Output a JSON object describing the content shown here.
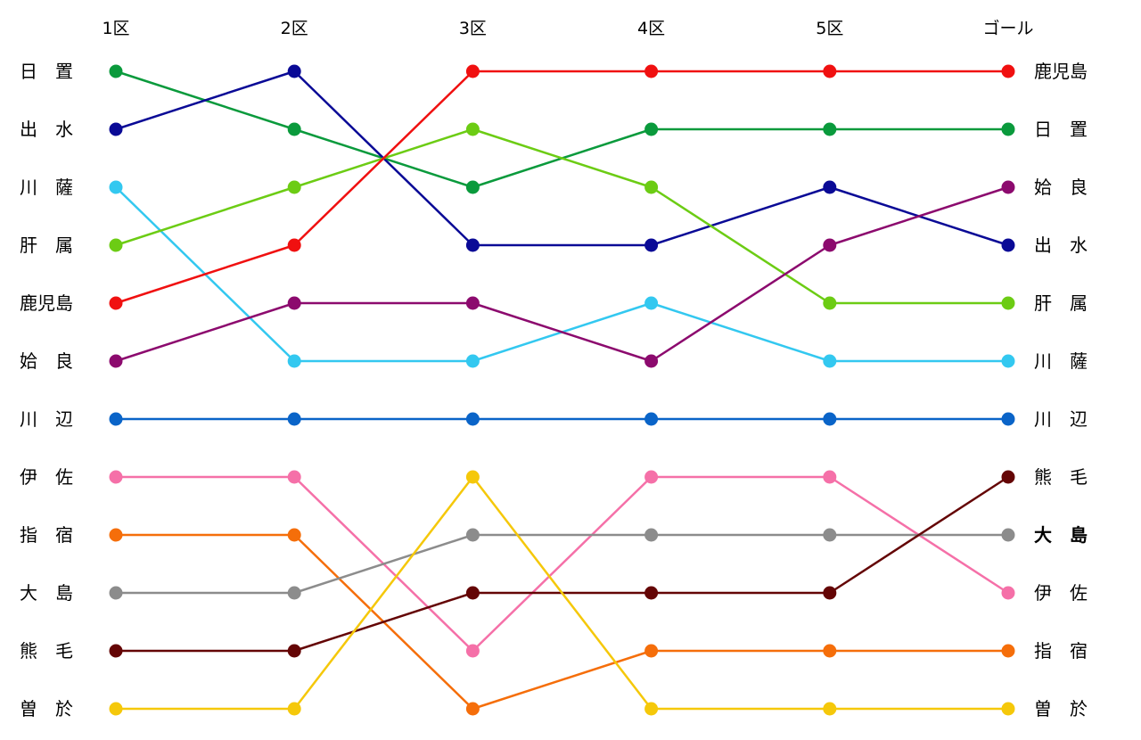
{
  "chart_data": {
    "type": "line",
    "title": "",
    "xlabel": "",
    "ylabel": "",
    "categories": [
      "1区",
      "2区",
      "3区",
      "4区",
      "5区",
      "ゴール"
    ],
    "ylim": [
      1,
      12
    ],
    "y_reversed": true,
    "grid": false,
    "legend": "none",
    "left_labels": [
      "日　置",
      "出　水",
      "川　薩",
      "肝　属",
      "鹿児島",
      "姶　良",
      "川　辺",
      "伊　佐",
      "指　宿",
      "大　島",
      "熊　毛",
      "曽　於"
    ],
    "right_labels": [
      "鹿児島",
      "日　置",
      "姶　良",
      "出　水",
      "肝　属",
      "川　薩",
      "川　辺",
      "熊　毛",
      "大　島",
      "伊　佐",
      "指　宿",
      "曽　於"
    ],
    "bold_right_labels": [
      "大　島"
    ],
    "series": [
      {
        "name": "日置",
        "color": "#0a9a3c",
        "values": [
          1,
          2,
          3,
          2,
          2,
          2
        ]
      },
      {
        "name": "出水",
        "color": "#0a0a96",
        "values": [
          2,
          1,
          4,
          4,
          3,
          4
        ]
      },
      {
        "name": "川薩",
        "color": "#33c8f0",
        "values": [
          3,
          6,
          6,
          5,
          6,
          6
        ]
      },
      {
        "name": "肝属",
        "color": "#6ccc14",
        "values": [
          4,
          3,
          2,
          3,
          5,
          5
        ]
      },
      {
        "name": "鹿児島",
        "color": "#f01010",
        "values": [
          5,
          4,
          1,
          1,
          1,
          1
        ]
      },
      {
        "name": "姶良",
        "color": "#8c0a6e",
        "values": [
          6,
          5,
          5,
          6,
          4,
          3
        ]
      },
      {
        "name": "川辺",
        "color": "#0a64c8",
        "values": [
          7,
          7,
          7,
          7,
          7,
          7
        ]
      },
      {
        "name": "伊佐",
        "color": "#f570a8",
        "values": [
          8,
          8,
          11,
          8,
          8,
          10
        ]
      },
      {
        "name": "指宿",
        "color": "#f56e0a",
        "values": [
          9,
          9,
          12,
          11,
          11,
          11
        ]
      },
      {
        "name": "大島",
        "color": "#8c8c8c",
        "values": [
          10,
          10,
          9,
          9,
          9,
          9
        ]
      },
      {
        "name": "熊毛",
        "color": "#640505",
        "values": [
          11,
          11,
          10,
          10,
          10,
          8
        ]
      },
      {
        "name": "曽於",
        "color": "#f5c80a",
        "values": [
          12,
          12,
          8,
          12,
          12,
          12
        ]
      }
    ]
  }
}
